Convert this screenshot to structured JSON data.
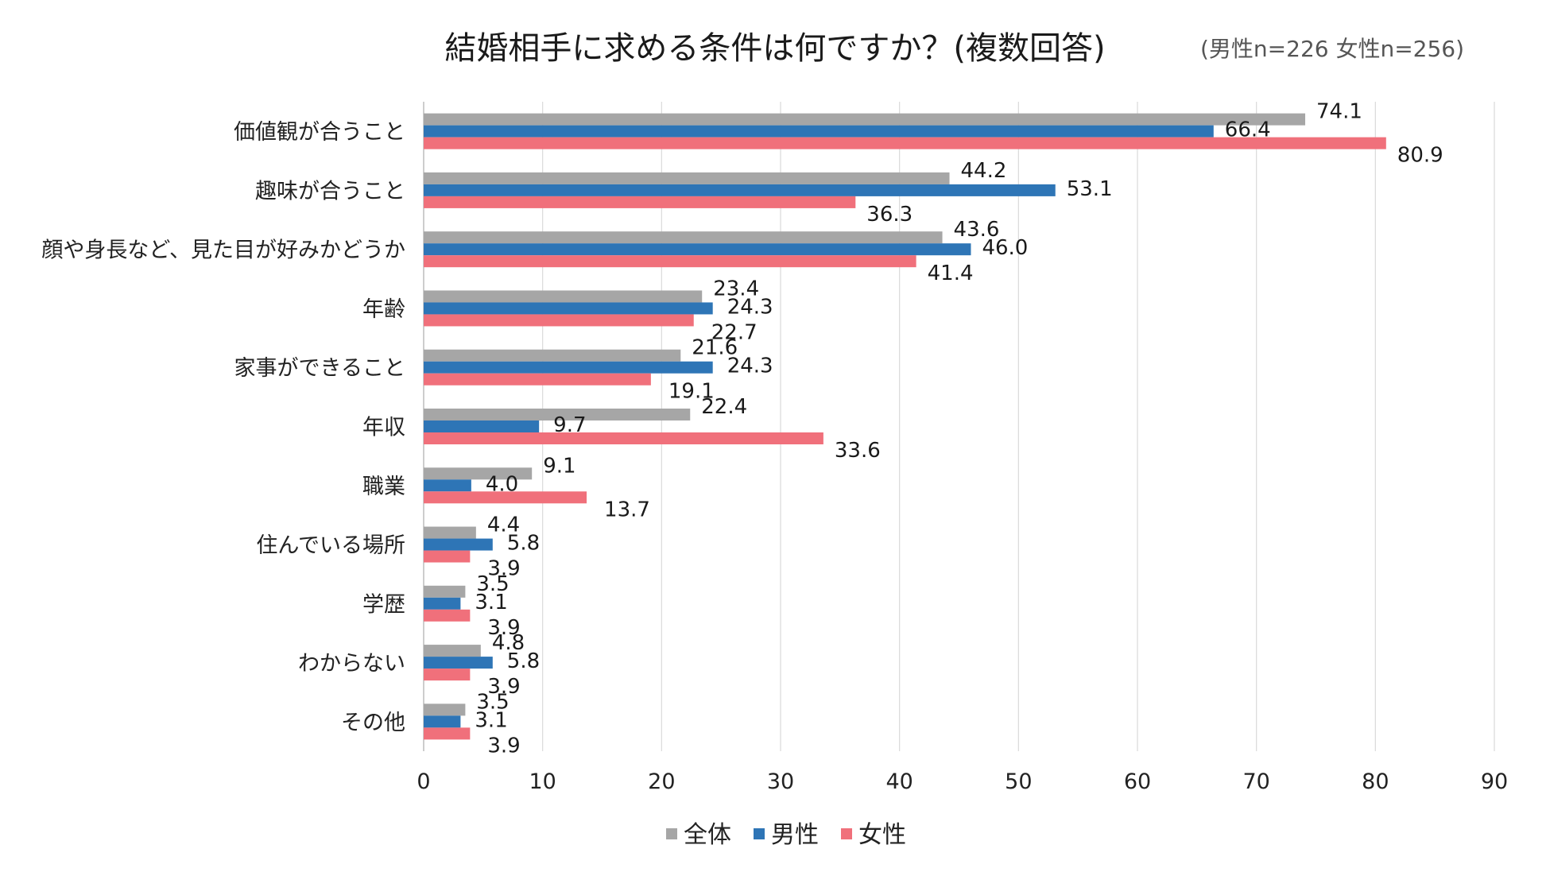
{
  "chart_data": {
    "type": "bar",
    "orientation": "horizontal",
    "title": "結婚相手に求める条件は何ですか？(複数回答)",
    "subtitle": "(男性n=226 女性n=256)",
    "categories": [
      "価値観が合うこと",
      "趣味が合うこと",
      "顔や身長など、見た目が好みかどうか",
      "年齢",
      "家事ができること",
      "年収",
      "職業",
      "住んでいる場所",
      "学歴",
      "わからない",
      "その他"
    ],
    "series": [
      {
        "name": "全体",
        "color": "#a6a6a6",
        "values": [
          74.1,
          44.2,
          43.6,
          23.4,
          21.6,
          22.4,
          9.1,
          4.4,
          3.5,
          4.8,
          3.5
        ]
      },
      {
        "name": "男性",
        "color": "#2e75b6",
        "values": [
          66.4,
          53.1,
          46.0,
          24.3,
          24.3,
          9.7,
          4.0,
          5.8,
          3.1,
          5.8,
          3.1
        ]
      },
      {
        "name": "女性",
        "color": "#f0707b",
        "values": [
          80.9,
          36.3,
          41.4,
          22.7,
          19.1,
          33.6,
          13.7,
          3.9,
          3.9,
          3.9,
          3.9
        ]
      }
    ],
    "xlim": [
      0,
      90
    ],
    "xticks": [
      0,
      10,
      20,
      30,
      40,
      50,
      60,
      70,
      80,
      90
    ],
    "xlabel": "",
    "ylabel": "",
    "grid": true,
    "legend": "bottom"
  }
}
